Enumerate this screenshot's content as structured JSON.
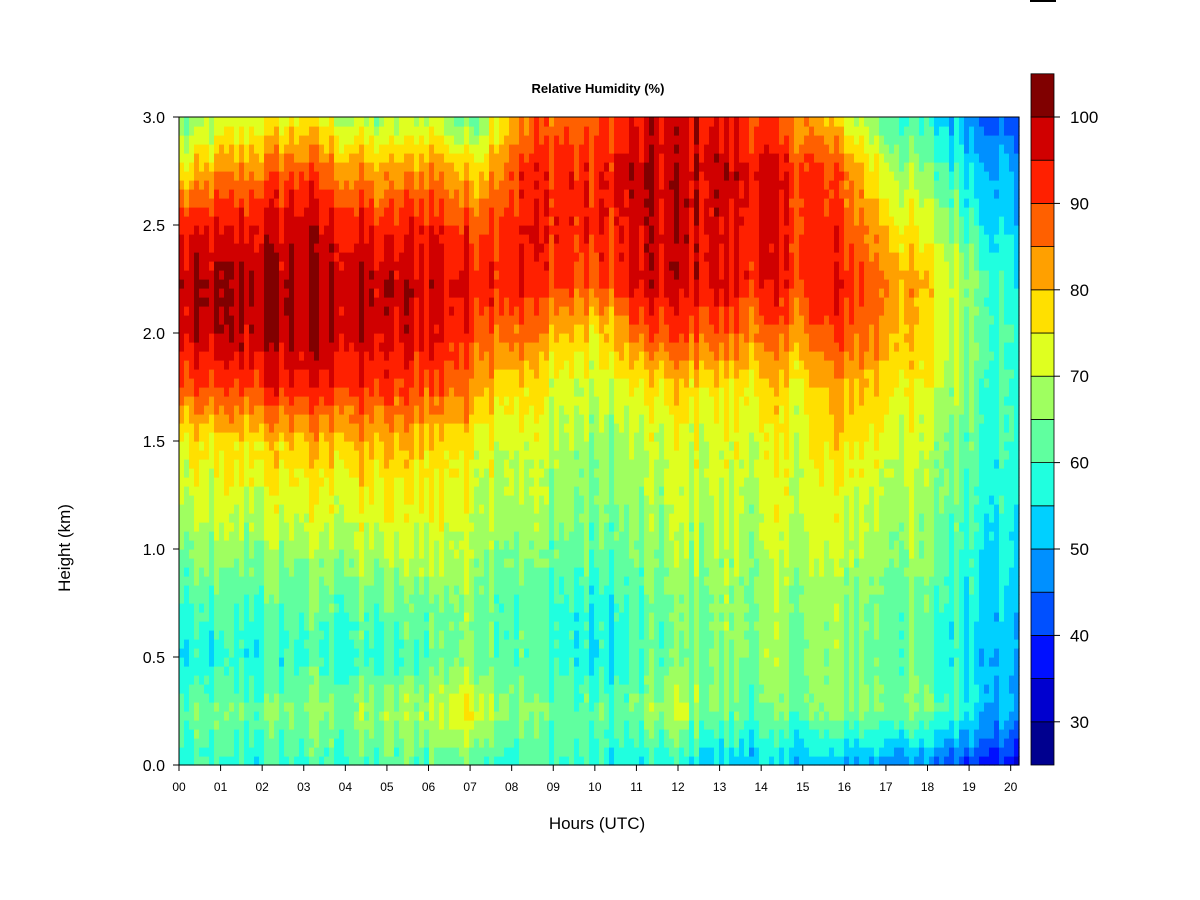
{
  "chart_data": {
    "type": "heatmap",
    "title": "Relative Humidity (%)",
    "xlabel": "Hours (UTC)",
    "ylabel": "Height (km)",
    "xlim": [
      0,
      20.2
    ],
    "ylim": [
      0,
      3.0
    ],
    "x_ticks": [
      "00",
      "01",
      "02",
      "03",
      "04",
      "05",
      "06",
      "07",
      "08",
      "09",
      "10",
      "11",
      "12",
      "13",
      "14",
      "15",
      "16",
      "17",
      "18",
      "19",
      "20"
    ],
    "y_ticks": [
      "0.0",
      "0.5",
      "1.0",
      "1.5",
      "2.0",
      "2.5",
      "3.0"
    ],
    "colorbar": {
      "range": [
        25,
        100
      ],
      "ticks": [
        "30",
        "40",
        "50",
        "60",
        "70",
        "80",
        "90",
        "100"
      ],
      "tick_values": [
        30,
        40,
        50,
        60,
        70,
        80,
        90,
        100
      ],
      "level_step": 5,
      "colors": [
        "#00008f",
        "#0000cf",
        "#0010ff",
        "#0050ff",
        "#0090ff",
        "#00d0ff",
        "#20ffdf",
        "#60ff9f",
        "#9fff60",
        "#dfff20",
        "#ffe000",
        "#ffa000",
        "#ff6000",
        "#ff2000",
        "#d00000",
        "#800000"
      ]
    },
    "grid": false,
    "hours": [
      0,
      1,
      2,
      3,
      4,
      5,
      6,
      7,
      8,
      9,
      10,
      11,
      12,
      13,
      14,
      15,
      16,
      17,
      18,
      19,
      20
    ],
    "heights_km": [
      0.0,
      0.25,
      0.5,
      0.75,
      1.0,
      1.25,
      1.5,
      1.75,
      2.0,
      2.25,
      2.5,
      2.75,
      3.0
    ],
    "rh_percent": [
      [
        57,
        58,
        58,
        59,
        60,
        60,
        62,
        63,
        60,
        60,
        57,
        56,
        55,
        52,
        52,
        52,
        50,
        48,
        45,
        42,
        36
      ],
      [
        62,
        63,
        64,
        66,
        66,
        67,
        70,
        76,
        66,
        64,
        62,
        63,
        70,
        64,
        62,
        64,
        66,
        66,
        64,
        58,
        48
      ],
      [
        54,
        56,
        58,
        60,
        58,
        58,
        62,
        66,
        62,
        60,
        54,
        60,
        64,
        66,
        66,
        66,
        66,
        64,
        60,
        56,
        50
      ],
      [
        58,
        60,
        61,
        62,
        62,
        63,
        64,
        66,
        62,
        60,
        56,
        60,
        64,
        66,
        66,
        66,
        66,
        64,
        62,
        58,
        52
      ],
      [
        64,
        65,
        67,
        68,
        68,
        69,
        72,
        70,
        66,
        64,
        62,
        64,
        68,
        68,
        68,
        70,
        70,
        68,
        64,
        60,
        54
      ],
      [
        70,
        71,
        72,
        74,
        73,
        74,
        75,
        73,
        70,
        68,
        64,
        66,
        70,
        70,
        70,
        72,
        72,
        70,
        66,
        62,
        56
      ],
      [
        74,
        76,
        78,
        80,
        80,
        80,
        80,
        76,
        72,
        70,
        66,
        68,
        72,
        72,
        72,
        74,
        78,
        74,
        68,
        64,
        58
      ],
      [
        88,
        89,
        92,
        94,
        92,
        90,
        90,
        86,
        78,
        74,
        70,
        74,
        78,
        76,
        76,
        76,
        82,
        78,
        72,
        66,
        58
      ],
      [
        96,
        98,
        99,
        100,
        98,
        96,
        96,
        92,
        88,
        82,
        76,
        86,
        90,
        88,
        86,
        86,
        90,
        84,
        76,
        68,
        58
      ],
      [
        98,
        99,
        100,
        100,
        99,
        98,
        98,
        96,
        94,
        92,
        88,
        96,
        98,
        96,
        94,
        92,
        94,
        86,
        78,
        68,
        56
      ],
      [
        92,
        94,
        96,
        98,
        94,
        92,
        94,
        90,
        94,
        94,
        92,
        96,
        98,
        96,
        94,
        92,
        90,
        80,
        70,
        62,
        52
      ],
      [
        76,
        82,
        86,
        90,
        84,
        80,
        86,
        78,
        90,
        94,
        92,
        98,
        98,
        98,
        96,
        92,
        88,
        72,
        64,
        56,
        48
      ],
      [
        62,
        70,
        72,
        76,
        70,
        66,
        72,
        62,
        82,
        88,
        86,
        94,
        96,
        94,
        90,
        84,
        74,
        62,
        56,
        50,
        42
      ]
    ]
  }
}
